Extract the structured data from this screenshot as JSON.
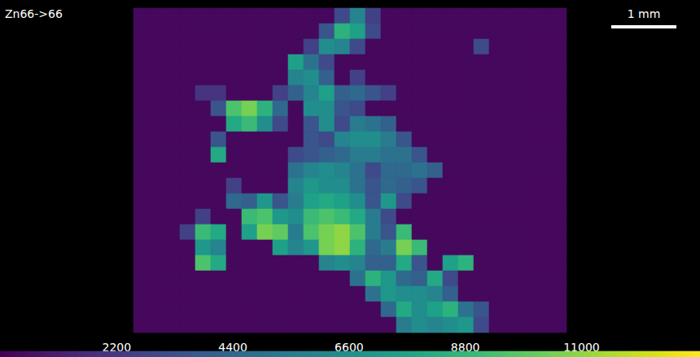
{
  "chart_data": {
    "type": "heatmap",
    "title": "Zn66->66",
    "scale_bar_label": "1 mm",
    "color": "viridis",
    "tick_labels": false,
    "colorbar": {
      "range": [
        0,
        13250
      ],
      "ticks": [
        2200,
        4400,
        6600,
        8800,
        11000
      ]
    },
    "cells": [
      [
        300,
        300,
        300,
        300,
        300,
        300,
        300,
        300,
        300,
        300,
        300,
        300,
        300,
        3000,
        6000,
        2500,
        300,
        300,
        300,
        300,
        300,
        300,
        300,
        300,
        300,
        300,
        300,
        300
      ],
      [
        300,
        300,
        300,
        300,
        300,
        300,
        300,
        300,
        300,
        300,
        300,
        300,
        3500,
        8500,
        7500,
        3000,
        300,
        300,
        300,
        300,
        300,
        300,
        300,
        300,
        300,
        300,
        300,
        300
      ],
      [
        300,
        300,
        300,
        300,
        300,
        300,
        300,
        300,
        300,
        300,
        300,
        2500,
        6500,
        6000,
        3000,
        300,
        300,
        300,
        300,
        300,
        300,
        300,
        3000,
        300,
        300,
        300,
        300,
        300
      ],
      [
        300,
        300,
        300,
        300,
        300,
        300,
        300,
        300,
        300,
        300,
        7500,
        5000,
        3000,
        300,
        300,
        300,
        300,
        300,
        300,
        300,
        300,
        300,
        300,
        300,
        300,
        300,
        300,
        300
      ],
      [
        300,
        300,
        300,
        300,
        300,
        300,
        300,
        300,
        300,
        300,
        6000,
        6500,
        4000,
        300,
        2500,
        300,
        300,
        300,
        300,
        300,
        300,
        300,
        300,
        300,
        300,
        300,
        300,
        300
      ],
      [
        300,
        300,
        300,
        300,
        2000,
        2000,
        300,
        300,
        300,
        2500,
        4000,
        6000,
        7500,
        4000,
        4500,
        3500,
        2500,
        300,
        300,
        300,
        300,
        300,
        300,
        300,
        300,
        300,
        300,
        300
      ],
      [
        300,
        300,
        300,
        300,
        300,
        3500,
        9500,
        10500,
        8500,
        4500,
        300,
        6500,
        6500,
        3500,
        3000,
        300,
        300,
        300,
        300,
        300,
        300,
        300,
        300,
        300,
        300,
        300,
        300,
        300
      ],
      [
        300,
        300,
        300,
        300,
        300,
        300,
        8000,
        9000,
        6500,
        3000,
        300,
        3500,
        6500,
        3000,
        5500,
        5000,
        4000,
        300,
        300,
        300,
        300,
        300,
        300,
        300,
        300,
        300,
        300,
        300
      ],
      [
        300,
        300,
        300,
        300,
        300,
        3500,
        300,
        300,
        300,
        300,
        300,
        3500,
        3000,
        6000,
        6500,
        6500,
        5500,
        3500,
        300,
        300,
        300,
        300,
        300,
        300,
        300,
        300,
        300,
        300
      ],
      [
        300,
        300,
        300,
        300,
        300,
        8000,
        300,
        300,
        300,
        300,
        3000,
        3500,
        4000,
        4500,
        5500,
        5500,
        5000,
        5000,
        3500,
        300,
        300,
        300,
        300,
        300,
        300,
        300,
        300,
        300
      ],
      [
        300,
        300,
        300,
        300,
        300,
        300,
        300,
        300,
        300,
        300,
        5000,
        6000,
        6500,
        6000,
        5000,
        3000,
        4500,
        4500,
        5000,
        4000,
        300,
        300,
        300,
        300,
        300,
        300,
        300,
        300
      ],
      [
        300,
        300,
        300,
        300,
        300,
        300,
        2500,
        300,
        300,
        300,
        6000,
        7000,
        6500,
        6500,
        5000,
        3500,
        4500,
        4000,
        3500,
        300,
        300,
        300,
        300,
        300,
        300,
        300,
        300,
        300
      ],
      [
        300,
        300,
        300,
        300,
        300,
        300,
        4500,
        4000,
        7000,
        3500,
        5500,
        7500,
        8000,
        7500,
        6500,
        3500,
        7000,
        3000,
        300,
        300,
        300,
        300,
        300,
        300,
        300,
        300,
        300,
        300
      ],
      [
        300,
        300,
        300,
        300,
        2500,
        300,
        300,
        9000,
        9500,
        7000,
        6500,
        9000,
        9500,
        9000,
        8000,
        5500,
        3000,
        300,
        300,
        300,
        300,
        300,
        300,
        300,
        300,
        300,
        300,
        300
      ],
      [
        300,
        300,
        300,
        2500,
        9000,
        8000,
        300,
        7500,
        10500,
        10000,
        5500,
        9500,
        10500,
        11000,
        9500,
        5500,
        3500,
        9000,
        300,
        300,
        300,
        300,
        300,
        300,
        300,
        300,
        300,
        300
      ],
      [
        300,
        300,
        300,
        300,
        7000,
        6000,
        300,
        300,
        300,
        7500,
        6000,
        7000,
        10500,
        11000,
        8500,
        4500,
        5500,
        10500,
        9000,
        300,
        300,
        300,
        300,
        300,
        300,
        300,
        300,
        300
      ],
      [
        300,
        300,
        300,
        300,
        9500,
        8000,
        300,
        300,
        300,
        300,
        300,
        300,
        6000,
        6500,
        6000,
        4000,
        4000,
        8000,
        3500,
        300,
        7500,
        8500,
        300,
        300,
        300,
        300,
        300,
        300
      ],
      [
        300,
        300,
        300,
        300,
        300,
        300,
        300,
        300,
        300,
        300,
        300,
        300,
        300,
        300,
        5000,
        8500,
        7000,
        4500,
        4000,
        8000,
        3000,
        300,
        300,
        300,
        300,
        300,
        300,
        300
      ],
      [
        300,
        300,
        300,
        300,
        300,
        300,
        300,
        300,
        300,
        300,
        300,
        300,
        300,
        300,
        300,
        5000,
        7000,
        6500,
        6500,
        6000,
        4000,
        300,
        300,
        300,
        300,
        300,
        300,
        300
      ],
      [
        300,
        300,
        300,
        300,
        300,
        300,
        300,
        300,
        300,
        300,
        300,
        300,
        300,
        300,
        300,
        300,
        4500,
        8000,
        6500,
        7500,
        8500,
        5000,
        3500,
        300,
        300,
        300,
        300,
        300
      ],
      [
        300,
        300,
        300,
        300,
        300,
        300,
        300,
        300,
        300,
        300,
        300,
        300,
        300,
        300,
        300,
        300,
        300,
        5500,
        6500,
        6000,
        6500,
        7000,
        3000,
        300,
        300,
        300,
        300,
        300
      ]
    ]
  }
}
